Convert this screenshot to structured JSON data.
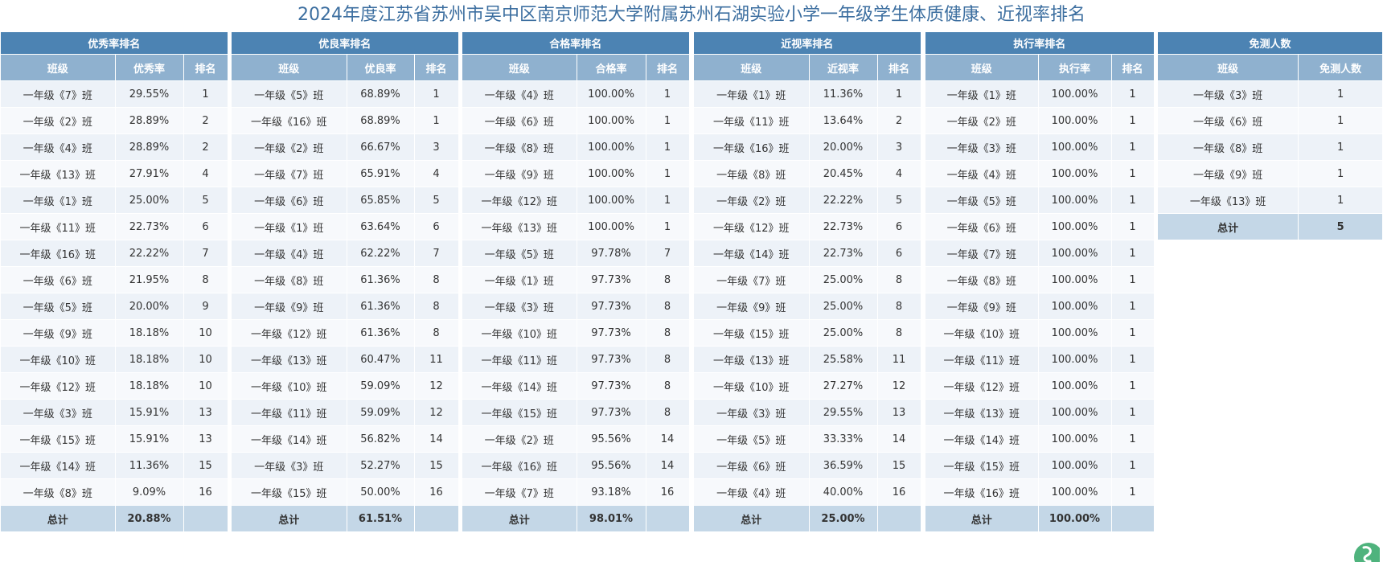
{
  "title": "2024年度江苏省苏州市吴中区南京师范大学附属苏州石湖实验小学一年级学生体质健康、近视率排名",
  "excellent": {
    "header": "优秀率排名",
    "columns": [
      "班级",
      "优秀率",
      "排名"
    ],
    "rows": [
      [
        "一年级《7》班",
        "29.55%",
        "1"
      ],
      [
        "一年级《2》班",
        "28.89%",
        "2"
      ],
      [
        "一年级《4》班",
        "28.89%",
        "2"
      ],
      [
        "一年级《13》班",
        "27.91%",
        "4"
      ],
      [
        "一年级《1》班",
        "25.00%",
        "5"
      ],
      [
        "一年级《11》班",
        "22.73%",
        "6"
      ],
      [
        "一年级《16》班",
        "22.22%",
        "7"
      ],
      [
        "一年级《6》班",
        "21.95%",
        "8"
      ],
      [
        "一年级《5》班",
        "20.00%",
        "9"
      ],
      [
        "一年级《9》班",
        "18.18%",
        "10"
      ],
      [
        "一年级《10》班",
        "18.18%",
        "10"
      ],
      [
        "一年级《12》班",
        "18.18%",
        "10"
      ],
      [
        "一年级《3》班",
        "15.91%",
        "13"
      ],
      [
        "一年级《15》班",
        "15.91%",
        "13"
      ],
      [
        "一年级《14》班",
        "11.36%",
        "15"
      ],
      [
        "一年级《8》班",
        "9.09%",
        "16"
      ]
    ],
    "total": [
      "总计",
      "20.88%",
      ""
    ]
  },
  "good": {
    "header": "优良率排名",
    "columns": [
      "班级",
      "优良率",
      "排名"
    ],
    "rows": [
      [
        "一年级《5》班",
        "68.89%",
        "1"
      ],
      [
        "一年级《16》班",
        "68.89%",
        "1"
      ],
      [
        "一年级《2》班",
        "66.67%",
        "3"
      ],
      [
        "一年级《7》班",
        "65.91%",
        "4"
      ],
      [
        "一年级《6》班",
        "65.85%",
        "5"
      ],
      [
        "一年级《1》班",
        "63.64%",
        "6"
      ],
      [
        "一年级《4》班",
        "62.22%",
        "7"
      ],
      [
        "一年级《8》班",
        "61.36%",
        "8"
      ],
      [
        "一年级《9》班",
        "61.36%",
        "8"
      ],
      [
        "一年级《12》班",
        "61.36%",
        "8"
      ],
      [
        "一年级《13》班",
        "60.47%",
        "11"
      ],
      [
        "一年级《10》班",
        "59.09%",
        "12"
      ],
      [
        "一年级《11》班",
        "59.09%",
        "12"
      ],
      [
        "一年级《14》班",
        "56.82%",
        "14"
      ],
      [
        "一年级《3》班",
        "52.27%",
        "15"
      ],
      [
        "一年级《15》班",
        "50.00%",
        "16"
      ]
    ],
    "total": [
      "总计",
      "61.51%",
      ""
    ]
  },
  "pass": {
    "header": "合格率排名",
    "columns": [
      "班级",
      "合格率",
      "排名"
    ],
    "rows": [
      [
        "一年级《4》班",
        "100.00%",
        "1"
      ],
      [
        "一年级《6》班",
        "100.00%",
        "1"
      ],
      [
        "一年级《8》班",
        "100.00%",
        "1"
      ],
      [
        "一年级《9》班",
        "100.00%",
        "1"
      ],
      [
        "一年级《12》班",
        "100.00%",
        "1"
      ],
      [
        "一年级《13》班",
        "100.00%",
        "1"
      ],
      [
        "一年级《5》班",
        "97.78%",
        "7"
      ],
      [
        "一年级《1》班",
        "97.73%",
        "8"
      ],
      [
        "一年级《3》班",
        "97.73%",
        "8"
      ],
      [
        "一年级《10》班",
        "97.73%",
        "8"
      ],
      [
        "一年级《11》班",
        "97.73%",
        "8"
      ],
      [
        "一年级《14》班",
        "97.73%",
        "8"
      ],
      [
        "一年级《15》班",
        "97.73%",
        "8"
      ],
      [
        "一年级《2》班",
        "95.56%",
        "14"
      ],
      [
        "一年级《16》班",
        "95.56%",
        "14"
      ],
      [
        "一年级《7》班",
        "93.18%",
        "16"
      ]
    ],
    "total": [
      "总计",
      "98.01%",
      ""
    ]
  },
  "myopia": {
    "header": "近视率排名",
    "columns": [
      "班级",
      "近视率",
      "排名"
    ],
    "rows": [
      [
        "一年级《1》班",
        "11.36%",
        "1"
      ],
      [
        "一年级《11》班",
        "13.64%",
        "2"
      ],
      [
        "一年级《16》班",
        "20.00%",
        "3"
      ],
      [
        "一年级《8》班",
        "20.45%",
        "4"
      ],
      [
        "一年级《2》班",
        "22.22%",
        "5"
      ],
      [
        "一年级《12》班",
        "22.73%",
        "6"
      ],
      [
        "一年级《14》班",
        "22.73%",
        "6"
      ],
      [
        "一年级《7》班",
        "25.00%",
        "8"
      ],
      [
        "一年级《9》班",
        "25.00%",
        "8"
      ],
      [
        "一年级《15》班",
        "25.00%",
        "8"
      ],
      [
        "一年级《13》班",
        "25.58%",
        "11"
      ],
      [
        "一年级《10》班",
        "27.27%",
        "12"
      ],
      [
        "一年级《3》班",
        "29.55%",
        "13"
      ],
      [
        "一年级《5》班",
        "33.33%",
        "14"
      ],
      [
        "一年级《6》班",
        "36.59%",
        "15"
      ],
      [
        "一年级《4》班",
        "40.00%",
        "16"
      ]
    ],
    "total": [
      "总计",
      "25.00%",
      ""
    ]
  },
  "execution": {
    "header": "执行率排名",
    "columns": [
      "班级",
      "执行率",
      "排名"
    ],
    "rows": [
      [
        "一年级《1》班",
        "100.00%",
        "1"
      ],
      [
        "一年级《2》班",
        "100.00%",
        "1"
      ],
      [
        "一年级《3》班",
        "100.00%",
        "1"
      ],
      [
        "一年级《4》班",
        "100.00%",
        "1"
      ],
      [
        "一年级《5》班",
        "100.00%",
        "1"
      ],
      [
        "一年级《6》班",
        "100.00%",
        "1"
      ],
      [
        "一年级《7》班",
        "100.00%",
        "1"
      ],
      [
        "一年级《8》班",
        "100.00%",
        "1"
      ],
      [
        "一年级《9》班",
        "100.00%",
        "1"
      ],
      [
        "一年级《10》班",
        "100.00%",
        "1"
      ],
      [
        "一年级《11》班",
        "100.00%",
        "1"
      ],
      [
        "一年级《12》班",
        "100.00%",
        "1"
      ],
      [
        "一年级《13》班",
        "100.00%",
        "1"
      ],
      [
        "一年级《14》班",
        "100.00%",
        "1"
      ],
      [
        "一年级《15》班",
        "100.00%",
        "1"
      ],
      [
        "一年级《16》班",
        "100.00%",
        "1"
      ]
    ],
    "total": [
      "总计",
      "100.00%",
      ""
    ]
  },
  "exempt": {
    "header": "免测人数",
    "columns": [
      "班级",
      "免测人数"
    ],
    "rows": [
      [
        "一年级《3》班",
        "1"
      ],
      [
        "一年级《6》班",
        "1"
      ],
      [
        "一年级《8》班",
        "1"
      ],
      [
        "一年级《9》班",
        "1"
      ],
      [
        "一年级《13》班",
        "1"
      ]
    ],
    "total": [
      "总计",
      "5"
    ]
  },
  "colors": {
    "title": "#3d6fa0",
    "header_dark": "#4c83b3",
    "header_light": "#8fb1cf",
    "row_odd": "#edf2f8",
    "row_even": "#f7f9fc",
    "total_row": "#c4d7e7"
  },
  "logo_icon": "brand-leaf-logo-icon"
}
